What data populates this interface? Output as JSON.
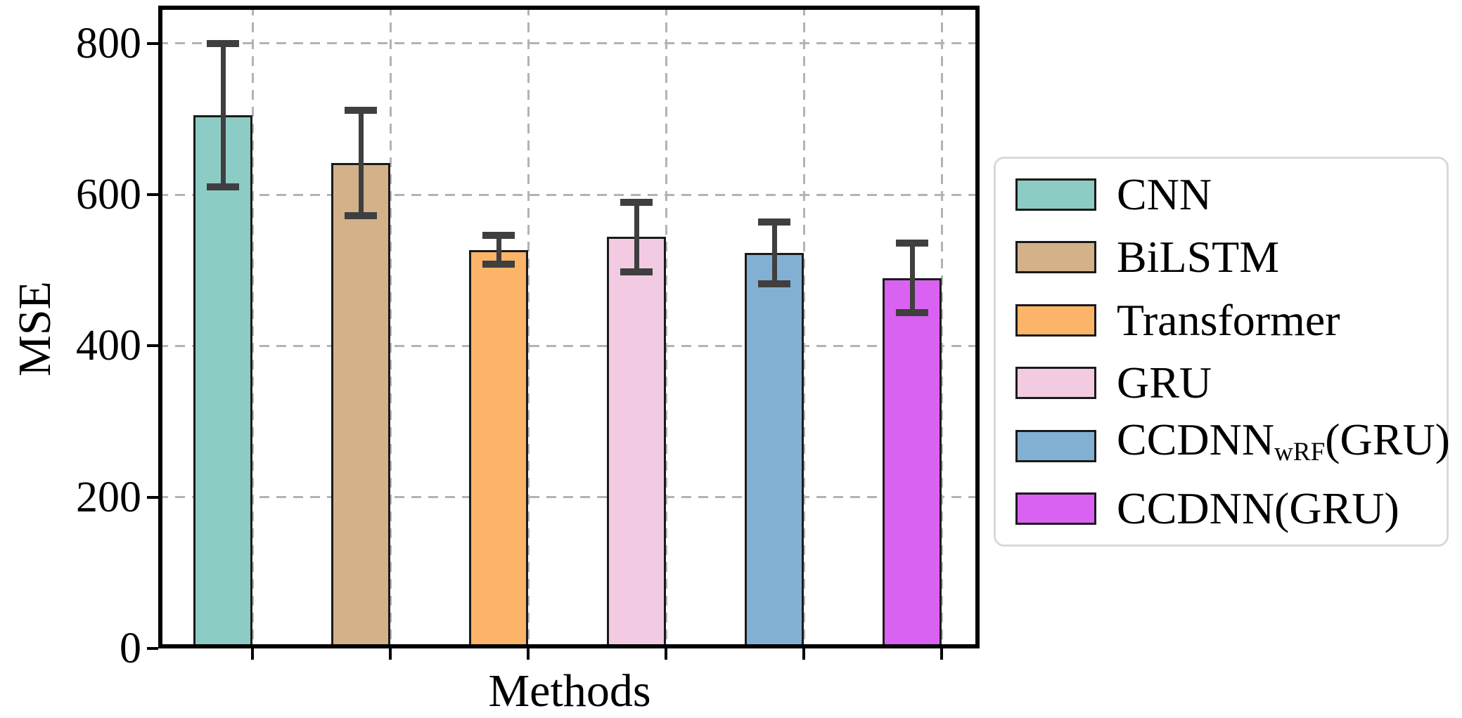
{
  "chart_data": {
    "type": "bar",
    "title": "",
    "xlabel": "Methods",
    "ylabel": "MSE",
    "ylim": [
      0,
      850
    ],
    "yticks": [
      0,
      200,
      400,
      600,
      800
    ],
    "grid": "dashed gray, horizontal at yticks and vertical between groups",
    "legend_position": "outside-right",
    "categories": [
      "CNN",
      "BiLSTM",
      "Transformer",
      "GRU",
      "CCDNNwRF(GRU)",
      "CCDNN(GRU)"
    ],
    "series": [
      {
        "name": "MSE",
        "values": [
          705,
          642,
          527,
          544,
          523,
          490
        ],
        "error_bars": [
          95,
          70,
          19,
          46,
          41,
          46
        ]
      }
    ],
    "colors": [
      "#8DCCC5",
      "#D3B189",
      "#FBB468",
      "#F2CBE2",
      "#82B0D2",
      "#DA62F2"
    ],
    "bar_edge_color": "#1a1a1a",
    "error_bar_color": "#3f3f3f",
    "grid_color": "#b3b3b3",
    "axis_color": "#000000",
    "legend_border_color": "#d9d9d9",
    "legend": [
      {
        "pre": "CNN",
        "sub": "",
        "post": ""
      },
      {
        "pre": "BiLSTM",
        "sub": "",
        "post": ""
      },
      {
        "pre": "Transformer",
        "sub": "",
        "post": ""
      },
      {
        "pre": "GRU",
        "sub": "",
        "post": ""
      },
      {
        "pre": "CCDNN",
        "sub": "wRF",
        "post": "(GRU)"
      },
      {
        "pre": "CCDNN",
        "sub": "",
        "post": "(GRU)"
      }
    ]
  }
}
